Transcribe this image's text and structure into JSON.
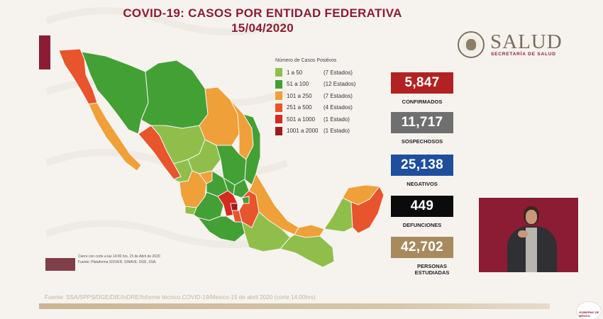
{
  "header": {
    "title_line1": "COVID-19: CASOS POR ENTIDAD FEDERATIVA",
    "title_line2": "15/04/2020"
  },
  "logo": {
    "name": "SALUD",
    "subtitle": "SECRETARÍA DE SALUD",
    "icon": "coat-of-arms-icon"
  },
  "legend": {
    "title": "Número de Casos Positivos",
    "items": [
      {
        "range": "1 a 50",
        "count": "(7 Estados)",
        "color": "#8fbf4a"
      },
      {
        "range": "51 a 100",
        "count": "(12 Estados)",
        "color": "#43a035"
      },
      {
        "range": "101 a 250",
        "count": "(7 Estados)",
        "color": "#f0a038"
      },
      {
        "range": "251 a 500",
        "count": "(4 Estados)",
        "color": "#e8542c"
      },
      {
        "range": "501 a 1000",
        "count": "(1 Estado)",
        "color": "#d42b20"
      },
      {
        "range": "1001 a 2000",
        "count": "(1 Estado)",
        "color": "#9a1c1e"
      }
    ]
  },
  "stats": [
    {
      "value": "5,847",
      "label": "CONFIRMADOS",
      "color": "#b22222"
    },
    {
      "value": "11,717",
      "label": "SOSPECHOSOS",
      "color": "#6f6f6f"
    },
    {
      "value": "25,138",
      "label": "NEGATIVOS",
      "color": "#1f4f9c"
    },
    {
      "value": "449",
      "label": "DEFUNCIONES",
      "color": "#0b0b0b"
    },
    {
      "value": "42,702",
      "label": "PERSONAS ESTUDIADAS",
      "color": "#a88a5e"
    }
  ],
  "footer": {
    "cutoff": "Cierre con corte a las 14:00 hrs, 15 de Abril de 2020",
    "platform": "Fuente: Plataforma SISVER, SINAVE, DGE, SSA.",
    "source": "Fuente: SSA/SPPS/DGE/DIE/InDRE/Informe técnico.COVID-19/Mexico-15 de abril 2020 (corte 14:00hrs)",
    "corner_logo_text": "GOBIERNO DE MÉXICO"
  }
}
